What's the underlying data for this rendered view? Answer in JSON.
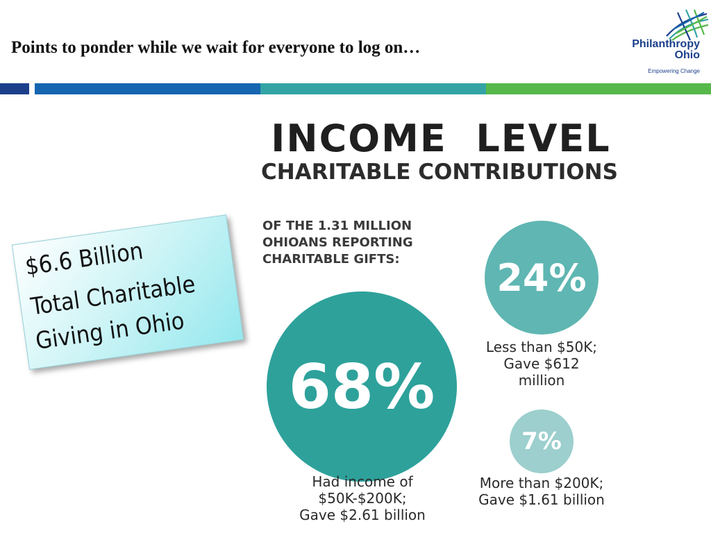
{
  "slide": {
    "title": "Points to ponder while we wait for everyone to log on…"
  },
  "logo": {
    "name_line1": "Philanthropy",
    "name_line2": "Ohio",
    "tagline": "Empowering Change",
    "mark_icon": "woven-grid-icon"
  },
  "colors": {
    "stripe_navy": "#1b3f8b",
    "stripe_blue": "#1565b0",
    "stripe_teal": "#34a3a4",
    "stripe_green": "#56b84a",
    "circle_dark": "#2ea19b",
    "circle_mid": "#5fb6b2",
    "circle_light": "#9ccfcd"
  },
  "infographic": {
    "heading_line1": "INCOME  LEVEL",
    "heading_line2": "CHARITABLE CONTRIBUTIONS",
    "intro": "OF THE 1.31 MILLION OHIOANS REPORTING CHARITABLE GIFTS:",
    "stats": [
      {
        "percent": "68%",
        "caption_lines": [
          "Had income of",
          "$50K-$200K;",
          "Gave $2.61 billion"
        ]
      },
      {
        "percent": "24%",
        "caption_lines": [
          "Less than $50K;",
          "Gave $612",
          "million"
        ]
      },
      {
        "percent": "7%",
        "caption_lines": [
          "More than $200K;",
          "Gave $1.61 billion"
        ]
      }
    ]
  },
  "callout": {
    "line1": "$6.6 Billion",
    "line2": "Total Charitable",
    "line3": "Giving in Ohio"
  }
}
